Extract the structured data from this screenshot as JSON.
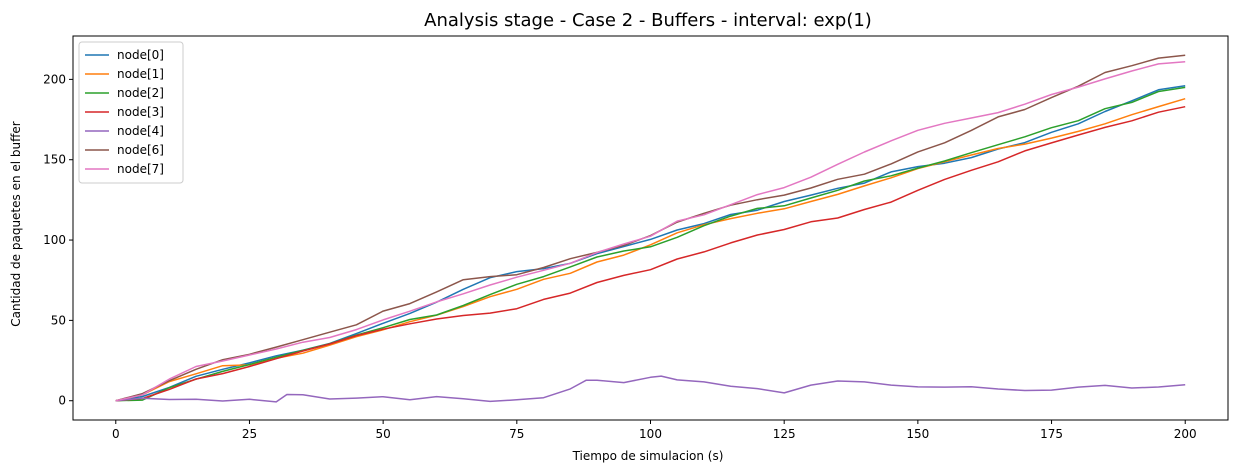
{
  "chart_data": {
    "type": "line",
    "title": "Analysis stage - Case 2 - Buffers - interval: exp(1)",
    "xlabel": "Tiempo de simulacion (s)",
    "ylabel": "Cantidad de paquetes en el buffer",
    "xlim": [
      -8,
      208
    ],
    "ylim": [
      -12,
      227
    ],
    "xticks": [
      0,
      25,
      50,
      75,
      100,
      125,
      150,
      175,
      200
    ],
    "yticks": [
      0,
      50,
      100,
      150,
      200
    ],
    "grid": false,
    "legend_position": "upper-left",
    "series": [
      {
        "name": "node[0]",
        "color": "#1f77b4",
        "x": [
          0,
          5,
          10,
          15,
          20,
          25,
          30,
          35,
          40,
          45,
          50,
          55,
          60,
          65,
          70,
          75,
          80,
          85,
          90,
          95,
          100,
          105,
          110,
          115,
          120,
          125,
          130,
          135,
          140,
          145,
          150,
          155,
          160,
          165,
          170,
          175,
          180,
          185,
          190,
          195,
          200
        ],
        "y": [
          0,
          2,
          9,
          15,
          20,
          23,
          28,
          32,
          36,
          41,
          48,
          55,
          62,
          70,
          76,
          80,
          82,
          86,
          92,
          96,
          101,
          107,
          111,
          116,
          119,
          124,
          128,
          132,
          136,
          142,
          145,
          148,
          152,
          156,
          161,
          167,
          173,
          180,
          187,
          193,
          196
        ]
      },
      {
        "name": "node[1]",
        "color": "#ff7f0e",
        "x": [
          0,
          5,
          10,
          15,
          20,
          25,
          30,
          35,
          40,
          45,
          50,
          55,
          60,
          65,
          70,
          75,
          80,
          85,
          90,
          95,
          100,
          105,
          110,
          115,
          120,
          125,
          130,
          135,
          140,
          145,
          150,
          155,
          160,
          165,
          170,
          175,
          180,
          185,
          190,
          195,
          200
        ],
        "y": [
          0,
          3,
          12,
          17,
          21,
          23,
          27,
          30,
          35,
          40,
          44,
          49,
          54,
          58,
          64,
          70,
          75,
          80,
          86,
          91,
          97,
          104,
          109,
          114,
          117,
          120,
          124,
          128,
          133,
          139,
          144,
          148,
          153,
          157,
          160,
          163,
          168,
          173,
          178,
          183,
          188
        ]
      },
      {
        "name": "node[2]",
        "color": "#2ca02c",
        "x": [
          0,
          5,
          10,
          15,
          20,
          25,
          30,
          35,
          40,
          45,
          50,
          55,
          60,
          65,
          70,
          75,
          80,
          85,
          90,
          95,
          100,
          105,
          110,
          115,
          120,
          125,
          130,
          135,
          140,
          145,
          150,
          155,
          160,
          165,
          170,
          175,
          180,
          185,
          190,
          195,
          200
        ],
        "y": [
          0,
          1,
          8,
          13,
          18,
          22,
          27,
          31,
          35,
          41,
          46,
          50,
          54,
          60,
          66,
          72,
          78,
          84,
          89,
          93,
          95,
          102,
          109,
          115,
          119,
          121,
          126,
          131,
          136,
          140,
          145,
          149,
          155,
          159,
          164,
          170,
          175,
          181,
          186,
          192,
          195
        ]
      },
      {
        "name": "node[3]",
        "color": "#d62728",
        "x": [
          0,
          5,
          10,
          15,
          20,
          25,
          30,
          35,
          40,
          45,
          50,
          55,
          60,
          65,
          70,
          75,
          80,
          85,
          90,
          95,
          100,
          105,
          110,
          115,
          120,
          125,
          130,
          135,
          140,
          145,
          150,
          155,
          160,
          165,
          170,
          175,
          180,
          185,
          190,
          195,
          200
        ],
        "y": [
          0,
          2,
          7,
          13,
          17,
          22,
          26,
          31,
          36,
          41,
          45,
          48,
          51,
          53,
          55,
          58,
          63,
          67,
          74,
          78,
          82,
          88,
          92,
          99,
          103,
          107,
          111,
          114,
          119,
          124,
          131,
          137,
          143,
          148,
          155,
          161,
          165,
          170,
          174,
          179,
          183
        ]
      },
      {
        "name": "node[4]",
        "color": "#9467bd",
        "x": [
          0,
          5,
          10,
          15,
          20,
          25,
          30,
          32,
          35,
          40,
          45,
          50,
          55,
          60,
          65,
          70,
          75,
          80,
          85,
          88,
          90,
          95,
          100,
          102,
          105,
          110,
          115,
          120,
          125,
          130,
          135,
          140,
          145,
          150,
          155,
          160,
          165,
          170,
          175,
          180,
          185,
          190,
          195,
          200
        ],
        "y": [
          0,
          1,
          0,
          1,
          0,
          1,
          0,
          4,
          3,
          1,
          1,
          2,
          1,
          2,
          1,
          0,
          1,
          2,
          8,
          13,
          12,
          11,
          14,
          15,
          13,
          11,
          9,
          8,
          5,
          10,
          12,
          11,
          10,
          9,
          8,
          9,
          7,
          6,
          7,
          8,
          9,
          8,
          9,
          10
        ]
      },
      {
        "name": "node[6]",
        "color": "#8c564b",
        "x": [
          0,
          5,
          10,
          15,
          20,
          25,
          30,
          35,
          40,
          45,
          50,
          55,
          60,
          65,
          70,
          75,
          80,
          85,
          90,
          95,
          100,
          105,
          110,
          115,
          120,
          125,
          130,
          135,
          140,
          145,
          150,
          155,
          160,
          165,
          170,
          175,
          180,
          185,
          190,
          195,
          200
        ],
        "y": [
          0,
          5,
          12,
          19,
          25,
          29,
          33,
          38,
          43,
          48,
          55,
          61,
          67,
          75,
          78,
          79,
          83,
          88,
          93,
          97,
          103,
          111,
          116,
          121,
          125,
          128,
          133,
          137,
          141,
          148,
          155,
          161,
          168,
          176,
          182,
          188,
          196,
          204,
          208,
          213,
          215
        ]
      },
      {
        "name": "node[7]",
        "color": "#e377c2",
        "x": [
          0,
          5,
          10,
          15,
          20,
          25,
          30,
          35,
          40,
          45,
          50,
          55,
          60,
          65,
          70,
          75,
          80,
          85,
          90,
          95,
          100,
          105,
          110,
          115,
          120,
          125,
          130,
          135,
          140,
          145,
          150,
          155,
          160,
          165,
          170,
          175,
          180,
          185,
          190,
          195,
          200
        ],
        "y": [
          0,
          4,
          14,
          22,
          25,
          28,
          32,
          36,
          40,
          45,
          50,
          55,
          62,
          67,
          72,
          77,
          81,
          86,
          92,
          97,
          103,
          111,
          116,
          122,
          128,
          133,
          139,
          147,
          155,
          162,
          168,
          172,
          176,
          180,
          185,
          190,
          195,
          201,
          205,
          209,
          211
        ]
      }
    ]
  }
}
